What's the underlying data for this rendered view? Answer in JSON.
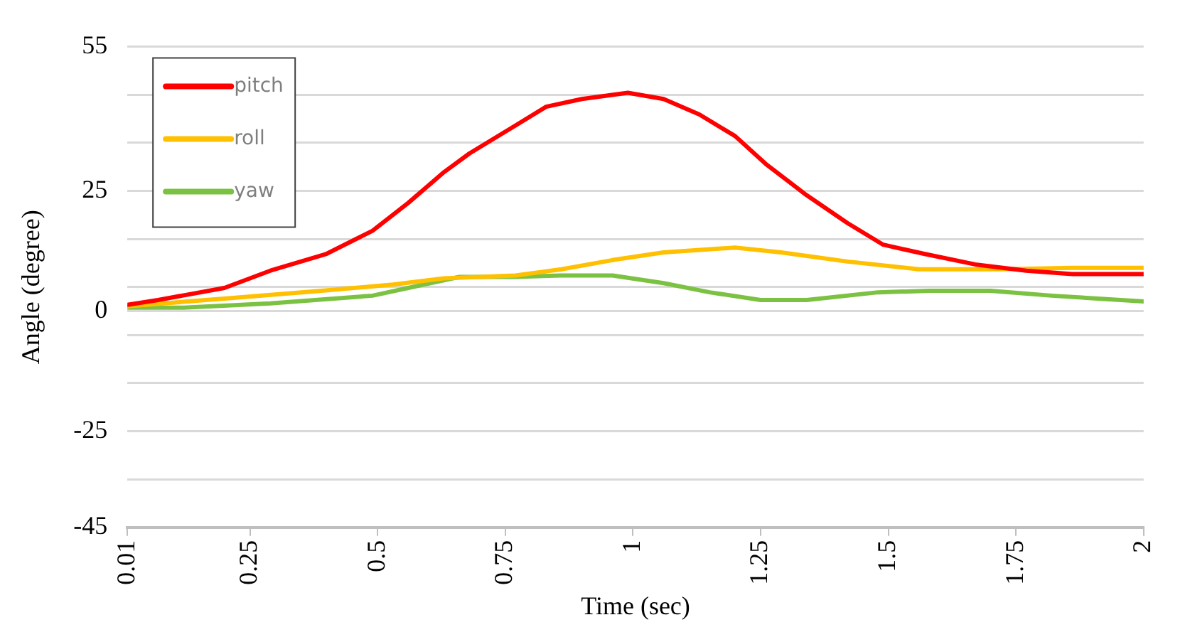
{
  "chart_data": {
    "type": "line",
    "xlabel": "Time (sec)",
    "ylabel": "Angle (degree)",
    "xlim": [
      0.01,
      2
    ],
    "xticks": [
      0.01,
      0.25,
      0.5,
      0.75,
      1,
      1.25,
      1.5,
      1.75,
      2
    ],
    "ylim": [
      -45,
      55
    ],
    "yticks": [
      55,
      {
        "value": 45,
        "label": null
      },
      {
        "value": 35,
        "label": null
      },
      25,
      {
        "value": 15,
        "label": null
      },
      {
        "value": 5,
        "label": null
      },
      0,
      {
        "value": -5,
        "label": null
      },
      {
        "value": -15,
        "label": null
      },
      -25,
      {
        "value": -35,
        "label": null
      },
      -45
    ],
    "grid": "y",
    "legend": "top left",
    "marker": "none",
    "line_style": "solid",
    "series": [
      {
        "name": "pitch",
        "color": "#ff0000",
        "x": [
          0.01,
          0.07,
          0.2,
          0.29,
          0.4,
          0.49,
          0.56,
          0.63,
          0.68,
          0.77,
          0.83,
          0.9,
          0.99,
          1.06,
          1.13,
          1.2,
          1.26,
          1.34,
          1.42,
          1.49,
          1.57,
          1.67,
          1.77,
          1.86,
          2
        ],
        "values": [
          1.3,
          2.3,
          4.8,
          8.4,
          11.9,
          16.7,
          22.5,
          28.9,
          32.8,
          38.6,
          42.5,
          44.1,
          45.4,
          44.1,
          40.9,
          36.4,
          30.6,
          24.1,
          18.3,
          13.8,
          11.9,
          9.7,
          8.4,
          7.7,
          7.7
        ]
      },
      {
        "name": "roll",
        "color": "#ffc000",
        "x": [
          0.01,
          0.2,
          0.39,
          0.53,
          0.63,
          0.77,
          0.86,
          0.96,
          1.06,
          1.2,
          1.29,
          1.42,
          1.56,
          1.72,
          1.86,
          2
        ],
        "values": [
          1.0,
          2.6,
          4.2,
          5.5,
          6.8,
          7.4,
          8.7,
          10.6,
          12.2,
          13.2,
          12.2,
          10.3,
          8.7,
          8.7,
          9.0,
          9.0
        ]
      },
      {
        "name": "yaw",
        "color": "#7cc242",
        "x": [
          0.01,
          0.12,
          0.29,
          0.49,
          0.56,
          0.66,
          0.77,
          0.86,
          0.96,
          1.06,
          1.15,
          1.25,
          1.34,
          1.48,
          1.58,
          1.7,
          1.82,
          1.91,
          2
        ],
        "values": [
          0.7,
          0.7,
          1.6,
          3.2,
          4.8,
          7.1,
          7.1,
          7.4,
          7.4,
          5.8,
          3.9,
          2.3,
          2.3,
          3.9,
          4.2,
          4.2,
          3.2,
          2.6,
          2.0
        ]
      }
    ]
  }
}
